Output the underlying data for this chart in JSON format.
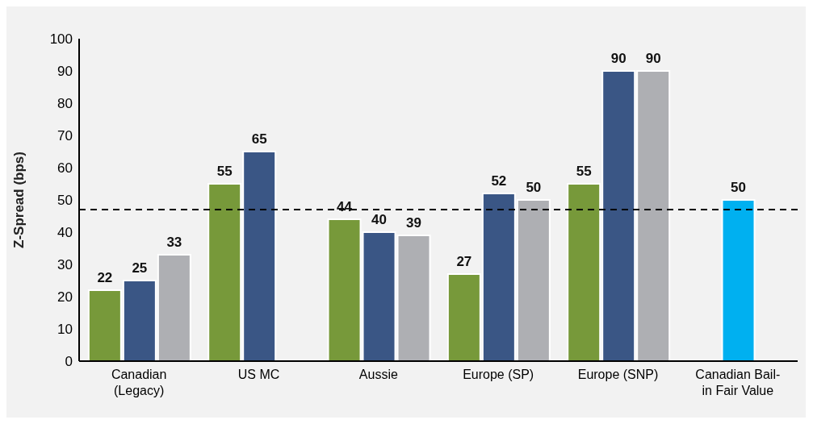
{
  "chart_data": {
    "type": "bar",
    "ylabel": "Z-Spread (bps)",
    "categories": [
      "Canadian (Legacy)",
      "US MC",
      "Aussie",
      "Europe (SP)",
      "Europe (SNP)",
      "Canadian Bail-in Fair Value"
    ],
    "series": [
      {
        "color": "#77993a",
        "values": [
          22,
          55,
          44,
          27,
          55,
          null
        ]
      },
      {
        "color": "#3a5685",
        "colors": [
          "#3a5685",
          "#3a5685",
          "#3a5685",
          "#3a5685",
          "#3a5685",
          "#00b0f0"
        ],
        "values": [
          25,
          65,
          40,
          52,
          90,
          50
        ]
      },
      {
        "color": "#aeafb3",
        "values": [
          33,
          null,
          39,
          50,
          90,
          null
        ]
      }
    ],
    "ylim": [
      0,
      100
    ],
    "yticks": [
      0,
      10,
      20,
      30,
      40,
      50,
      60,
      70,
      80,
      90,
      100
    ],
    "grid": false,
    "data_labels": true,
    "ref_lines": [
      {
        "axis": "y",
        "value": 47,
        "color": "#000000",
        "line_style": "dashed"
      }
    ]
  }
}
